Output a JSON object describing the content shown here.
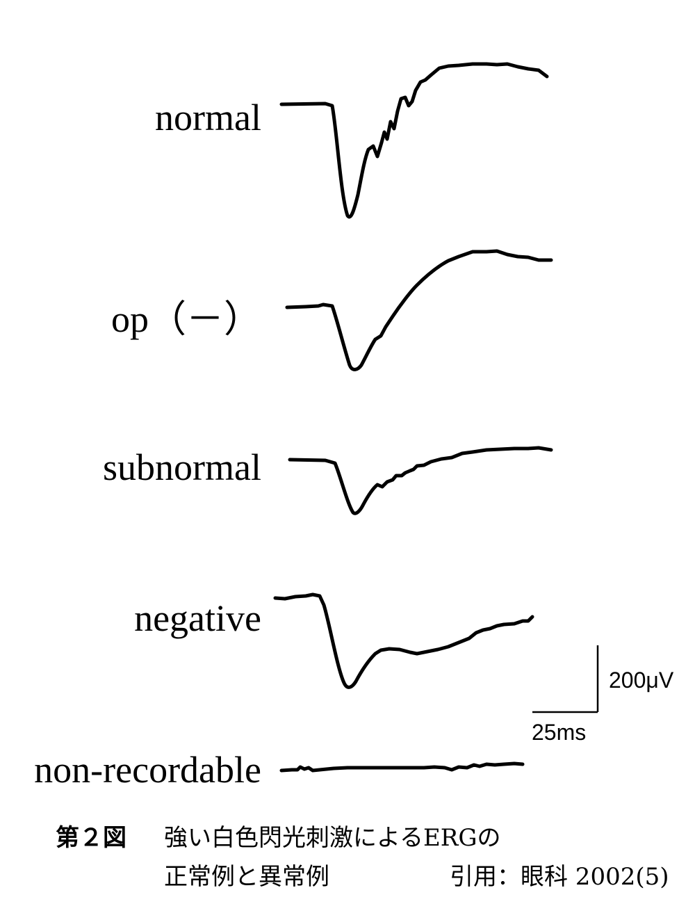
{
  "traces": [
    {
      "id": "normal",
      "label": "normal"
    },
    {
      "id": "op",
      "label": "op（－）"
    },
    {
      "id": "subnormal",
      "label": "subnormal"
    },
    {
      "id": "negative",
      "label": "negative"
    },
    {
      "id": "nonrec",
      "label": "non-recordable"
    }
  ],
  "scale_bar": {
    "amplitude_label": "200μV",
    "time_label": "25ms"
  },
  "caption": {
    "figure_number": "第２図",
    "line1": "強い白色閃光刺激によるERGの",
    "line2": "正常例と異常例",
    "citation": "引用：眼科 2002(5)"
  }
}
